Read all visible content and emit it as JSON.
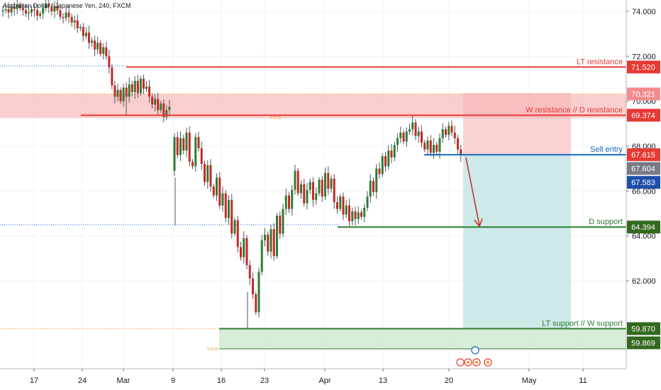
{
  "header": {
    "symbol_title": "Australian Dollar / Japanese Yen, 240, FXCM"
  },
  "chart_data": {
    "type": "candlestick",
    "ylim": [
      58.2,
      74.8
    ],
    "y_ticks": [
      "74.000",
      "72.000",
      "70.000",
      "68.000",
      "66.000",
      "64.000",
      "62.000"
    ],
    "x_ticks": [
      "17",
      "24",
      "Mar",
      "9",
      "16",
      "23",
      "Apr",
      "13",
      "20",
      "May",
      "11"
    ],
    "levels": [
      {
        "name": "LT resistance",
        "price": 71.52,
        "badge": "71.520",
        "color": "#e53935",
        "badge_color": "#e53935"
      },
      {
        "name": "W resistance // D resistance",
        "price": 69.374,
        "badge": "69.374",
        "color": "#e53935",
        "badge_color": "#e53935"
      },
      {
        "name": "Sell entry",
        "price": 67.615,
        "badge": "67.615",
        "color": "#1565c0",
        "badge_color": "#e53935"
      },
      {
        "name": "D support",
        "price": 64.394,
        "badge": "64.394",
        "color": "#2e7d32",
        "badge_color": "#33691e"
      },
      {
        "name": "LT support // W support",
        "price": 59.87,
        "badge": "59.870",
        "color": "#2e7d32",
        "badge_color": "#33691e"
      }
    ],
    "price_badges": [
      {
        "text": "70.321",
        "price": 70.321,
        "color": "#f28c8c"
      },
      {
        "text": "67.604",
        "price": 67.604,
        "color": "#787b86"
      },
      {
        "text": "67.583",
        "price": 67.583,
        "color": "#1e4fa8"
      },
      {
        "text": "59.869",
        "price": 59.869,
        "color": "#33691e"
      }
    ],
    "fib_labels": [
      "0.618",
      "0.618"
    ],
    "series": [
      {
        "values": [
          74.0,
          74.05,
          74.1,
          73.95,
          74.2,
          74.1,
          74.3,
          74.15,
          74.05,
          73.9,
          73.95,
          74.1,
          74.05,
          73.8,
          73.9,
          74.15,
          74.35,
          74.2,
          74.0,
          74.25,
          74.05,
          73.75,
          73.7,
          73.95,
          73.75,
          73.5,
          73.6,
          73.25,
          73.3,
          72.9,
          73.05,
          72.6,
          72.7,
          72.3,
          72.6,
          72.1,
          72.4,
          72.0,
          71.5,
          70.7,
          70.2,
          70.5,
          70.0,
          70.6,
          70.2,
          70.75,
          70.4,
          70.9,
          70.35,
          71.0,
          70.55,
          70.65,
          70.2,
          69.85,
          70.1,
          69.6,
          69.9,
          69.3,
          69.6,
          69.75
        ]
      },
      {
        "values": [
          66.9,
          68.4,
          67.6,
          68.35,
          67.8,
          68.6,
          67.3,
          67.1,
          68.4,
          67.9,
          67.2,
          66.4,
          67.15,
          66.2,
          65.8,
          66.6,
          65.35,
          65.9,
          64.8,
          65.6,
          64.1,
          64.7,
          63.5,
          63.05,
          63.9,
          62.7,
          62.1,
          61.4,
          60.6,
          62.4,
          63.8,
          64.05,
          63.3,
          64.3,
          63.1,
          64.9,
          64.1,
          65.2,
          65.8,
          65.2,
          66.05,
          66.9,
          65.9,
          66.3,
          65.45,
          66.05,
          66.4,
          65.6,
          65.9,
          66.5,
          65.75,
          66.8,
          66.1,
          66.55,
          65.5,
          65.2,
          65.75,
          64.95,
          65.35,
          64.65,
          65.1,
          64.75,
          65.05,
          64.85,
          65.25,
          65.75,
          66.45,
          65.95,
          67.0,
          66.75,
          67.55,
          67.1,
          67.8,
          67.5,
          68.05,
          68.35,
          68.6,
          68.2,
          68.65,
          68.75,
          69.05,
          68.45,
          68.65,
          68.15,
          67.85,
          68.25,
          67.7,
          68.05,
          67.75,
          68.35,
          68.75,
          68.5,
          68.9,
          68.6,
          68.35,
          67.85,
          67.6
        ]
      }
    ]
  }
}
